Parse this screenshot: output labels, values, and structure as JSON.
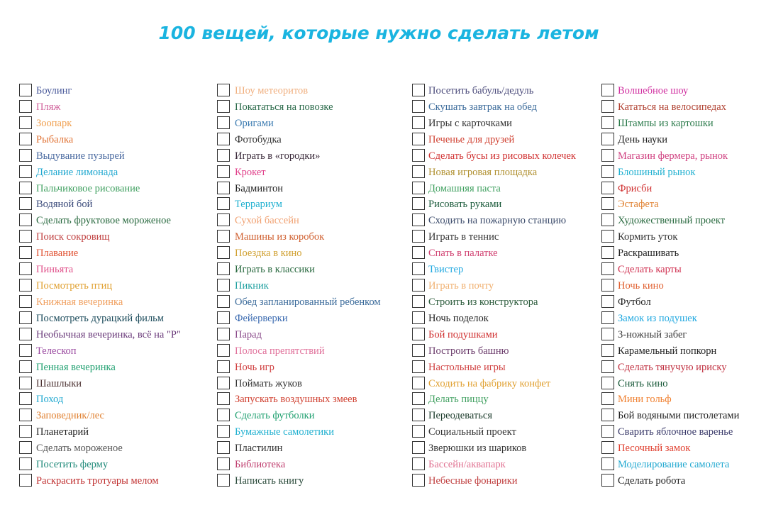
{
  "title": "100 вещей, которые нужно сделать летом",
  "columns": [
    [
      {
        "text": "Боулинг",
        "color": "#4a5a9a"
      },
      {
        "text": "Пляж",
        "color": "#d0609a"
      },
      {
        "text": "Зоопарк",
        "color": "#f0a050"
      },
      {
        "text": "Рыбалка",
        "color": "#e07030"
      },
      {
        "text": "Выдувание пузырей",
        "color": "#4a6aa0"
      },
      {
        "text": "Делание лимонада",
        "color": "#20a8d0"
      },
      {
        "text": "Пальчиковое рисование",
        "color": "#40a060"
      },
      {
        "text": "Водяной бой",
        "color": "#3a4a7a"
      },
      {
        "text": "Сделать фруктовое мороженое",
        "color": "#2a6a40"
      },
      {
        "text": "Поиск сокровищ",
        "color": "#c04040"
      },
      {
        "text": "Плавание",
        "color": "#e05030"
      },
      {
        "text": "Пиньята",
        "color": "#e0508a"
      },
      {
        "text": "Посмотреть птиц",
        "color": "#e0a030"
      },
      {
        "text": "Книжная вечеринка",
        "color": "#f0a060"
      },
      {
        "text": "Посмотреть дурацкий фильм",
        "color": "#1a4a5a"
      },
      {
        "text": "Необычная вечеринка, всё на \"Р\"",
        "color": "#6a3a7a"
      },
      {
        "text": "Телескоп",
        "color": "#9a4aa0"
      },
      {
        "text": "Пенная вечеринка",
        "color": "#20a070"
      },
      {
        "text": "Шашлыки",
        "color": "#4a3030"
      },
      {
        "text": "Поход",
        "color": "#20a8d0"
      },
      {
        "text": "Заповедник/лес",
        "color": "#e08030"
      },
      {
        "text": "Планетарий",
        "color": "#222222"
      },
      {
        "text": "Сделать мороженое",
        "color": "#555555"
      },
      {
        "text": "Посетить ферму",
        "color": "#208a7a"
      },
      {
        "text": "Раскрасить тротуары мелом",
        "color": "#c03030"
      }
    ],
    [
      {
        "text": "Шоу метеоритов",
        "color": "#f0b080"
      },
      {
        "text": "Покататься на повозке",
        "color": "#2a6a4a"
      },
      {
        "text": "Оригами",
        "color": "#3a7ab0"
      },
      {
        "text": "Фотобудка",
        "color": "#333333"
      },
      {
        "text": "Играть в «городки»",
        "color": "#3a2a3a"
      },
      {
        "text": "Крокет",
        "color": "#e0408a"
      },
      {
        "text": "Бадминтон",
        "color": "#222222"
      },
      {
        "text": "Террариум",
        "color": "#20b0d0"
      },
      {
        "text": "Сухой бассейн",
        "color": "#f0a070"
      },
      {
        "text": "Машины из коробок",
        "color": "#d06030"
      },
      {
        "text": "Поездка в кино",
        "color": "#d0a030"
      },
      {
        "text": "Играть в классики",
        "color": "#2a6a40"
      },
      {
        "text": "Пикник",
        "color": "#20a0a0"
      },
      {
        "text": "Обед запланированный ребенком",
        "color": "#3a6a9a"
      },
      {
        "text": "Фейерверки",
        "color": "#3a6ab0"
      },
      {
        "text": "Парад",
        "color": "#8a4a8a"
      },
      {
        "text": "Полоса препятствий",
        "color": "#e0709a"
      },
      {
        "text": "Ночь игр",
        "color": "#d04040"
      },
      {
        "text": "Поймать жуков",
        "color": "#333333"
      },
      {
        "text": "Запускать воздушных змеев",
        "color": "#d04030"
      },
      {
        "text": "Сделать футболки",
        "color": "#20a070"
      },
      {
        "text": "Бумажные самолетики",
        "color": "#20b0d0"
      },
      {
        "text": "Пластилин",
        "color": "#333333"
      },
      {
        "text": "Библиотека",
        "color": "#c04070"
      },
      {
        "text": "Написать книгу",
        "color": "#2a4a3a"
      }
    ],
    [
      {
        "text": "Посетить бабуль/дедуль",
        "color": "#4a4a7a"
      },
      {
        "text": "Скушать завтрак на обед",
        "color": "#3a6a9a"
      },
      {
        "text": "Игры с карточками",
        "color": "#333333"
      },
      {
        "text": "Печенье для друзей",
        "color": "#d04030"
      },
      {
        "text": "Сделать бусы из рисовых колечек",
        "color": "#d03030"
      },
      {
        "text": "Новая игровая площадка",
        "color": "#b09030"
      },
      {
        "text": "Домашняя паста",
        "color": "#40a060"
      },
      {
        "text": "Рисовать руками",
        "color": "#1a5a3a"
      },
      {
        "text": "Сходить на пожарную станцию",
        "color": "#3a4a6a"
      },
      {
        "text": "Играть в теннис",
        "color": "#333333"
      },
      {
        "text": "Спать в палатке",
        "color": "#d04070"
      },
      {
        "text": "Твистер",
        "color": "#20a8e0"
      },
      {
        "text": "Играть в почту",
        "color": "#f0b070"
      },
      {
        "text": "Строить из конструктора",
        "color": "#2a5a3a"
      },
      {
        "text": "Ночь поделок",
        "color": "#222222"
      },
      {
        "text": "Бой подушками",
        "color": "#d03030"
      },
      {
        "text": "Построить башню",
        "color": "#6a3a6a"
      },
      {
        "text": "Настольные игры",
        "color": "#d04040"
      },
      {
        "text": "Сходить на фабрику конфет",
        "color": "#e0a030"
      },
      {
        "text": "Делать пиццу",
        "color": "#40a060"
      },
      {
        "text": "Переодеваться",
        "color": "#1a3a2a"
      },
      {
        "text": "Социальный проект",
        "color": "#333333"
      },
      {
        "text": "Зверюшки из шариков",
        "color": "#333333"
      },
      {
        "text": "Бассейн/аквапарк",
        "color": "#e07090"
      },
      {
        "text": "Небесные фонарики",
        "color": "#c04040"
      }
    ],
    [
      {
        "text": "Волшебное шоу",
        "color": "#d030a0"
      },
      {
        "text": "Кататься на велосипедах",
        "color": "#b04030"
      },
      {
        "text": "Штампы из картошки",
        "color": "#2a7a4a"
      },
      {
        "text": "День науки",
        "color": "#222222"
      },
      {
        "text": "Магазин фермера, рынок",
        "color": "#d04080"
      },
      {
        "text": "Блошиный рынок",
        "color": "#20b0d0"
      },
      {
        "text": "Фрисби",
        "color": "#d03030"
      },
      {
        "text": "Эстафета",
        "color": "#e08030"
      },
      {
        "text": "Художественный проект",
        "color": "#2a6a40"
      },
      {
        "text": "Кормить уток",
        "color": "#333333"
      },
      {
        "text": "Раскрашивать",
        "color": "#222222"
      },
      {
        "text": "Сделать карты",
        "color": "#d03050"
      },
      {
        "text": "Ночь кино",
        "color": "#e06030"
      },
      {
        "text": "Футбол",
        "color": "#222222"
      },
      {
        "text": "Замок из подушек",
        "color": "#20a8e0"
      },
      {
        "text": "3-ножный забег",
        "color": "#3a3a3a"
      },
      {
        "text": "Карамельный попкорн",
        "color": "#222222"
      },
      {
        "text": "Сделать тянучую ириску",
        "color": "#c03040"
      },
      {
        "text": "Снять кино",
        "color": "#1a5a3a"
      },
      {
        "text": "Мини гольф",
        "color": "#f08030"
      },
      {
        "text": "Бой водяными пистолетами",
        "color": "#222222"
      },
      {
        "text": "Сварить яблочное варенье",
        "color": "#3a3a6a"
      },
      {
        "text": "Песочный замок",
        "color": "#e04030"
      },
      {
        "text": "Моделирование самолета",
        "color": "#20a8d0"
      },
      {
        "text": "Сделать робота",
        "color": "#222222"
      }
    ]
  ]
}
